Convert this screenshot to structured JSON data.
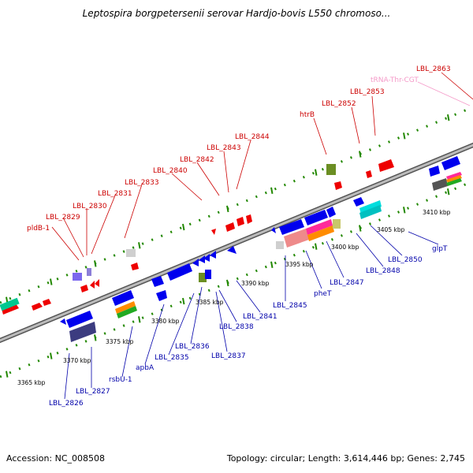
{
  "title": "Leptospira borgpetersenii serovar Hardjo-bovis L550 chromoso...",
  "footer": {
    "accession": "Accession: NC_008508",
    "summary": "Topology: circular; Length: 3,614,446 bp; Genes: 2,745"
  },
  "colors": {
    "forward_label": "#cc0000",
    "reverse_label": "#0000aa",
    "trna_label": "#f49ac8",
    "forward_gene": "#ee0000",
    "reverse_gene": "#0000ee",
    "backbone": "#888888",
    "tick": "#228800"
  },
  "scale_labels": [
    "3365 kbp",
    "3370 kbp",
    "3375 kbp",
    "3380 kbp",
    "3385 kbp",
    "3390 kbp",
    "3395 kbp",
    "3400 kbp",
    "3405 kbp",
    "3410 kbp"
  ],
  "forward_labels": [
    {
      "text": "pldB-1",
      "type": "forward"
    },
    {
      "text": "LBL_2829",
      "type": "forward"
    },
    {
      "text": "LBL_2830",
      "type": "forward"
    },
    {
      "text": "LBL_2831",
      "type": "forward"
    },
    {
      "text": "LBL_2833",
      "type": "forward"
    },
    {
      "text": "LBL_2840",
      "type": "forward"
    },
    {
      "text": "LBL_2842",
      "type": "forward"
    },
    {
      "text": "LBL_2843",
      "type": "forward"
    },
    {
      "text": "LBL_2844",
      "type": "forward"
    },
    {
      "text": "htrB",
      "type": "forward"
    },
    {
      "text": "LBL_2852",
      "type": "forward"
    },
    {
      "text": "LBL_2853",
      "type": "forward"
    },
    {
      "text": "tRNA-Thr-CGT",
      "type": "trna"
    },
    {
      "text": "LBL_2863",
      "type": "forward"
    }
  ],
  "reverse_labels": [
    {
      "text": "LBL_2826"
    },
    {
      "text": "LBL_2827"
    },
    {
      "text": "rsbU-1"
    },
    {
      "text": "apbA"
    },
    {
      "text": "LBL_2835"
    },
    {
      "text": "LBL_2836"
    },
    {
      "text": "LBL_2837"
    },
    {
      "text": "LBL_2838"
    },
    {
      "text": "LBL_2841"
    },
    {
      "text": "LBL_2845"
    },
    {
      "text": "pheT"
    },
    {
      "text": "LBL_2847"
    },
    {
      "text": "LBL_2848"
    },
    {
      "text": "LBL_2850"
    },
    {
      "text": "glpT"
    }
  ]
}
